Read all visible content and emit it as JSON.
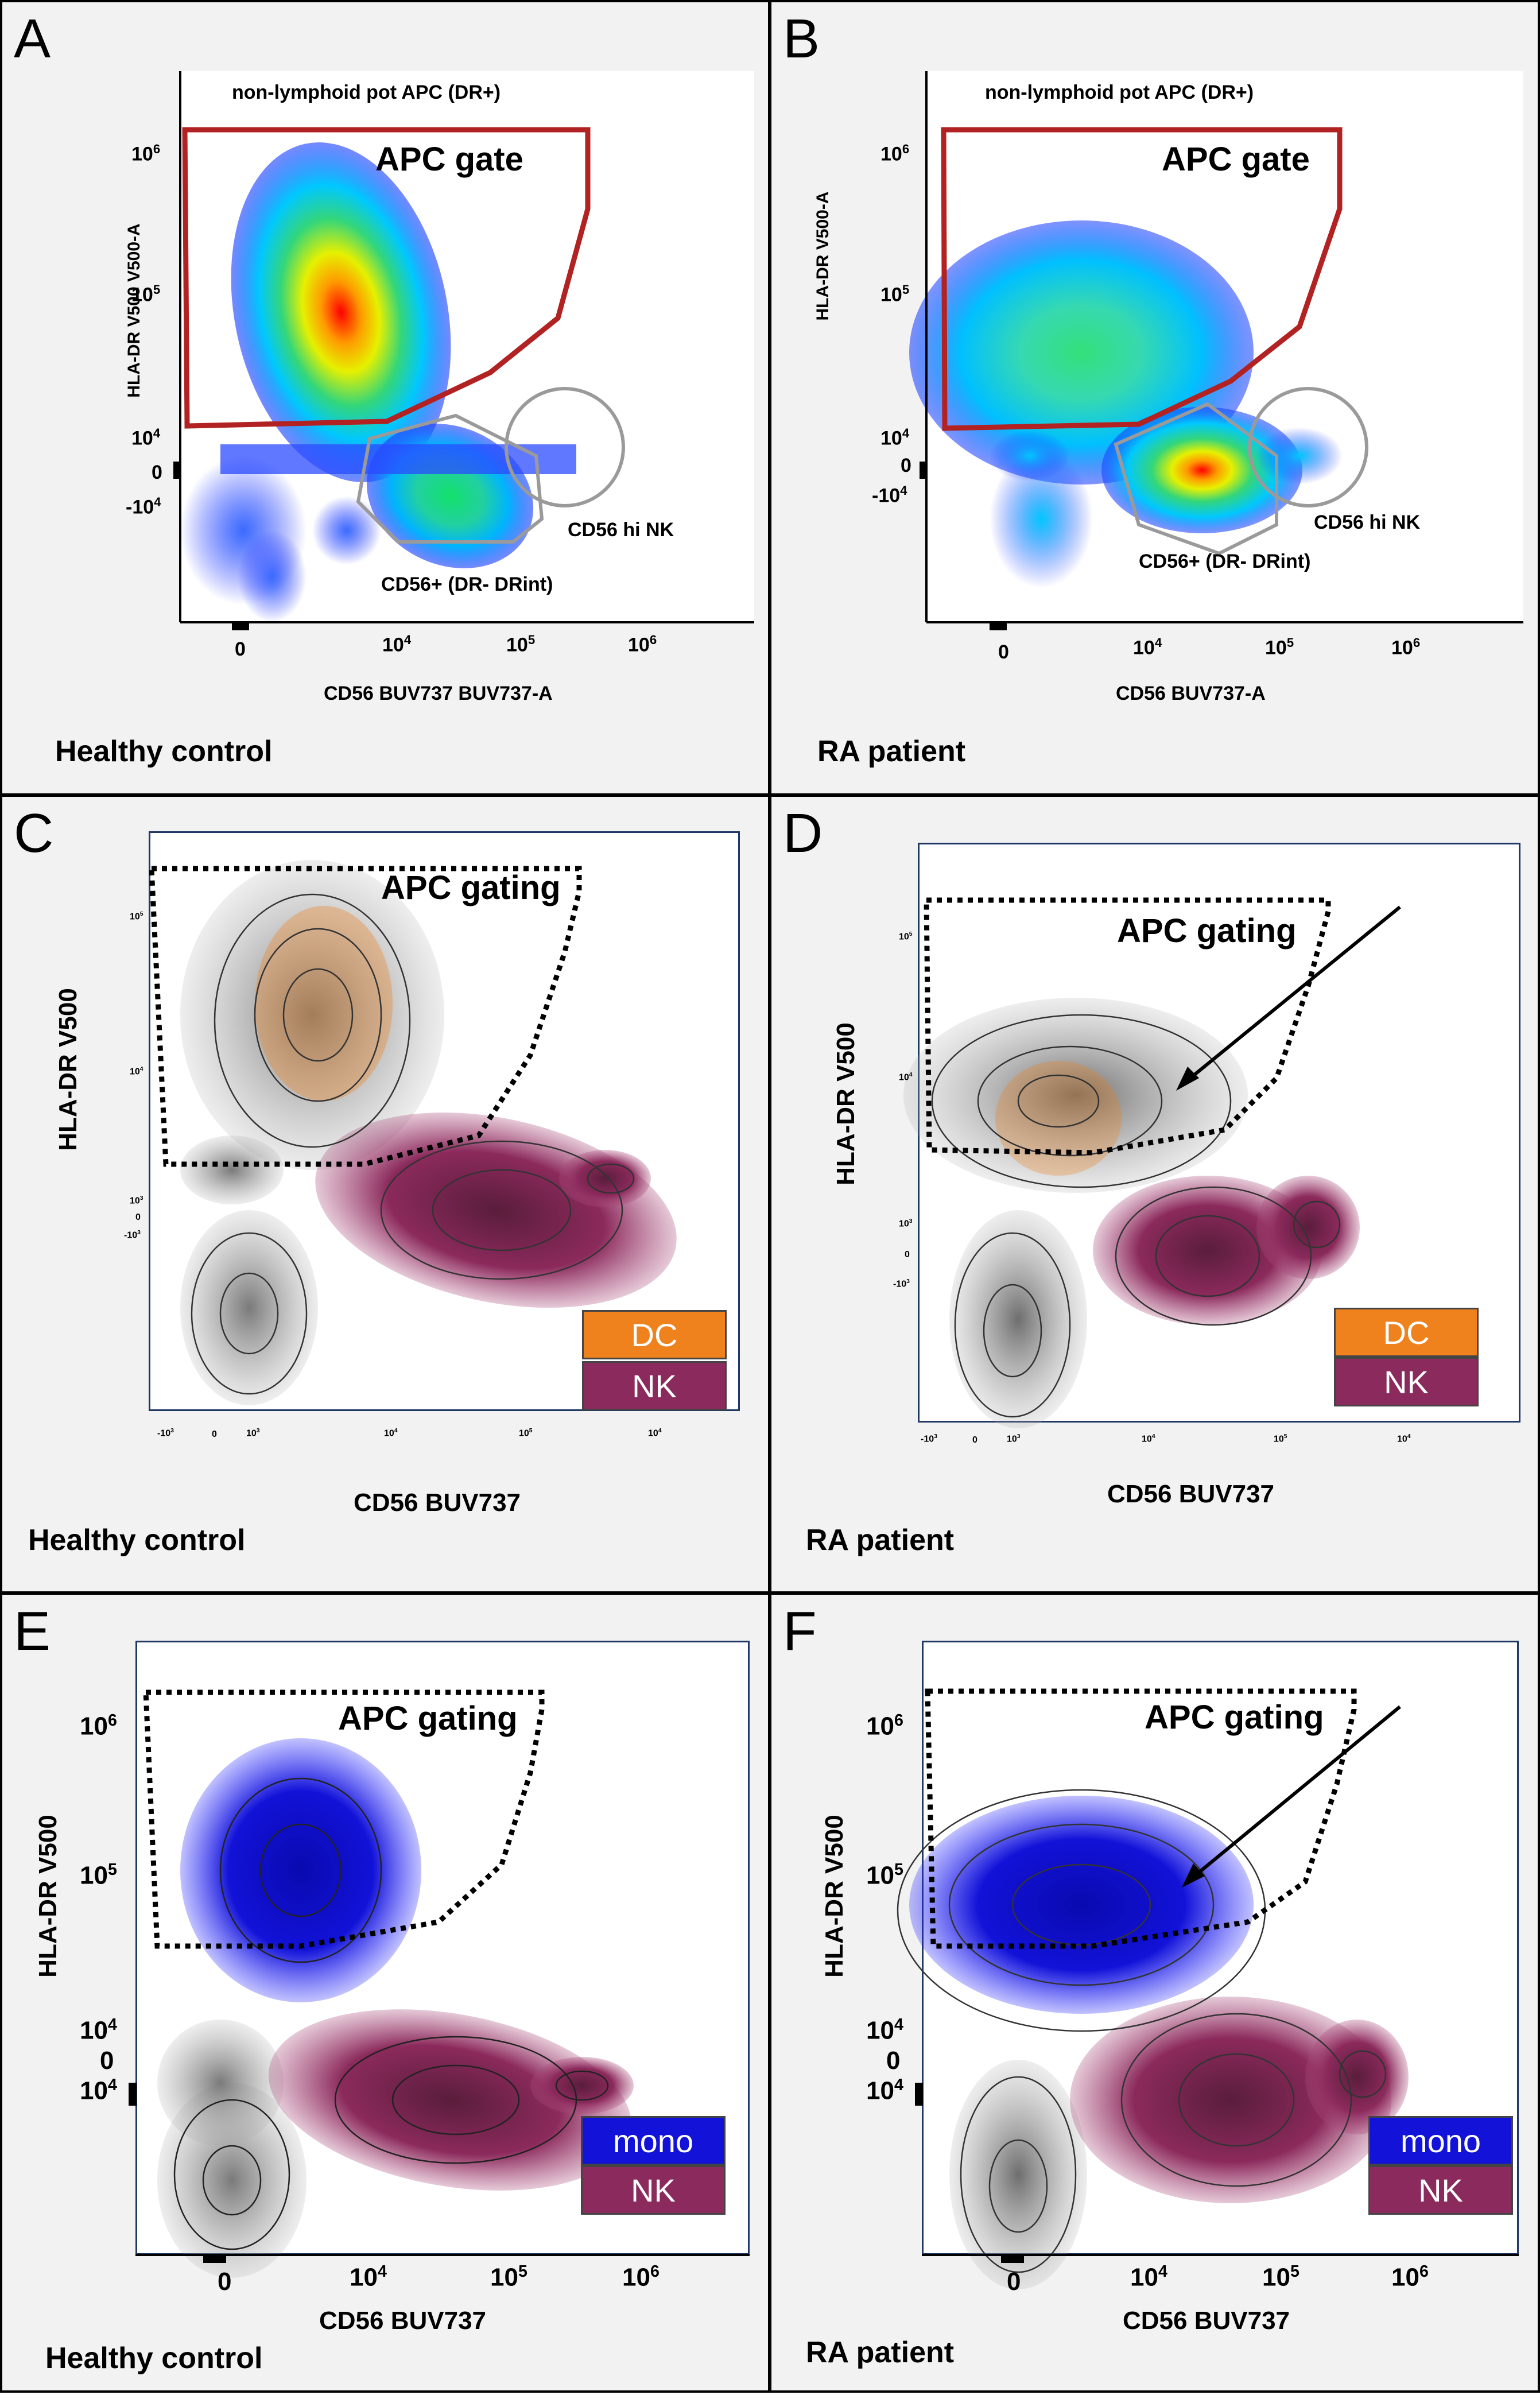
{
  "figure": {
    "panels": [
      {
        "letter": "A",
        "caption": "Healthy control",
        "xlabel": "CD56 BUV737 BUV737-A",
        "ylabel": "HLA-DR V500 V500-A",
        "title_note": "non-lymphoid pot APC (DR+)",
        "gate_label": "APC gate",
        "annotation_1": "CD56 hi NK",
        "annotation_2": "CD56+ (DR- DRint)"
      },
      {
        "letter": "B",
        "caption": "RA patient",
        "xlabel": "CD56 BUV737-A",
        "ylabel": "HLA-DR V500-A",
        "title_note": "non-lymphoid pot APC (DR+)",
        "gate_label": "APC gate",
        "annotation_1": "CD56 hi NK",
        "annotation_2": "CD56+ (DR- DRint)"
      },
      {
        "letter": "C",
        "caption": "Healthy control",
        "xlabel": "CD56 BUV737",
        "ylabel": "HLA-DR V500",
        "gate_label": "APC gating",
        "legend": [
          "DC",
          "NK"
        ]
      },
      {
        "letter": "D",
        "caption": "RA patient",
        "xlabel": "CD56 BUV737",
        "ylabel": "HLA-DR V500",
        "gate_label": "APC gating",
        "legend": [
          "DC",
          "NK"
        ]
      },
      {
        "letter": "E",
        "caption": "Healthy control",
        "xlabel": "CD56 BUV737",
        "ylabel": "HLA-DR V500",
        "gate_label": "APC gating",
        "legend": [
          "mono",
          "NK"
        ]
      },
      {
        "letter": "F",
        "caption": "RA patient",
        "xlabel": "CD56 BUV737",
        "ylabel": "HLA-DR V500",
        "gate_label": "APC gating",
        "legend": [
          "mono",
          "NK"
        ]
      }
    ],
    "ticks": {
      "zero": "0",
      "x_pos": [
        "10",
        "10",
        "10"
      ],
      "x_exp": [
        "4",
        "5",
        "6"
      ],
      "y_pos": [
        "10",
        "10",
        "10"
      ],
      "y_exp": [
        "6",
        "5",
        "4"
      ],
      "y_neg": "-10",
      "y_neg_exp": "4",
      "y_neg_E": "10",
      "tiny_neg_x": "-10",
      "tiny_exp3": "3",
      "tiny_exp4": "4",
      "tiny_exp5": "5"
    }
  },
  "colors": {
    "gate_red": "#b22222",
    "dc": "#f0821e",
    "nk": "#8b2a5c",
    "mono": "#1212d8",
    "gray": "#8c8c8c",
    "panel_bg": "#f2f2f2"
  }
}
